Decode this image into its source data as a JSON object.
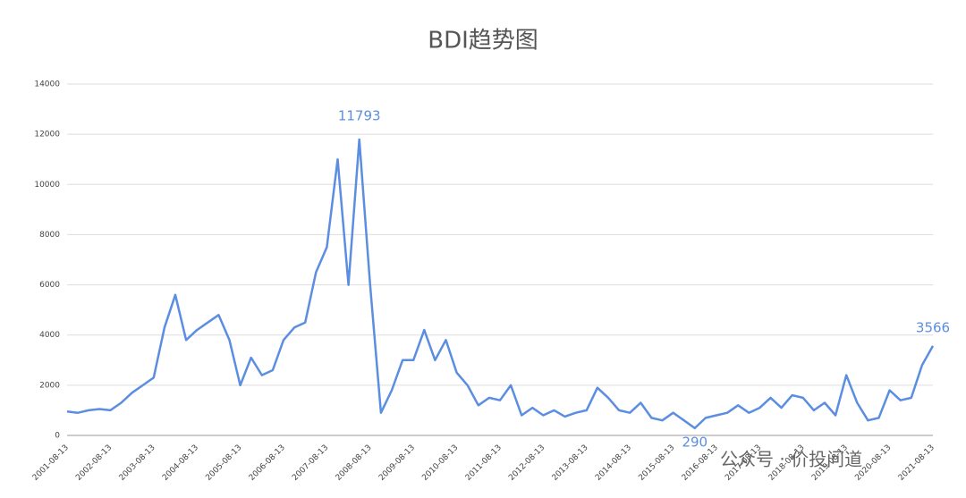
{
  "chart_data": {
    "type": "line",
    "title": "BDI趋势图",
    "categories": [
      "2001-08-13",
      null,
      null,
      null,
      "2002-08-13",
      null,
      null,
      null,
      "2003-08-13",
      null,
      null,
      null,
      "2004-08-13",
      null,
      null,
      null,
      "2005-08-13",
      null,
      null,
      null,
      "2006-08-13",
      null,
      null,
      null,
      "2007-08-13",
      null,
      null,
      null,
      "2008-08-13",
      null,
      null,
      null,
      "2009-08-13",
      null,
      null,
      null,
      "2010-08-13",
      null,
      null,
      null,
      "2011-08-13",
      null,
      null,
      null,
      "2012-08-13",
      null,
      null,
      null,
      "2013-08-13",
      null,
      null,
      null,
      "2014-08-13",
      null,
      null,
      null,
      "2015-08-13",
      null,
      null,
      null,
      "2016-08-13",
      null,
      null,
      null,
      "2017-08-13",
      null,
      null,
      null,
      "2018-08-13",
      null,
      null,
      null,
      "2019-08-13",
      null,
      null,
      null,
      "2020-08-13",
      null,
      null,
      null,
      "2021-08-13"
    ],
    "values": [
      950,
      900,
      1000,
      1050,
      1000,
      1300,
      1700,
      2000,
      2300,
      4300,
      5600,
      3800,
      4200,
      4500,
      4800,
      3800,
      2000,
      3100,
      2400,
      2600,
      3800,
      4300,
      4500,
      6500,
      7500,
      11000,
      6000,
      11793,
      6000,
      900,
      1800,
      3000,
      3000,
      4200,
      3000,
      3800,
      2500,
      2000,
      1200,
      1500,
      1400,
      2000,
      800,
      1100,
      800,
      1000,
      750,
      900,
      1000,
      1900,
      1500,
      1000,
      900,
      1300,
      700,
      600,
      900,
      600,
      290,
      700,
      800,
      900,
      1200,
      900,
      1100,
      1500,
      1100,
      1600,
      1500,
      1000,
      1300,
      800,
      2400,
      1300,
      600,
      700,
      1800,
      1400,
      1500,
      2800,
      3566
    ],
    "color": "#5b8ee0",
    "ylim": [
      0,
      14000
    ],
    "yticks": [
      0,
      2000,
      4000,
      6000,
      8000,
      10000,
      12000,
      14000
    ],
    "grid": true,
    "watermark": "公众号 · 价投问道"
  }
}
